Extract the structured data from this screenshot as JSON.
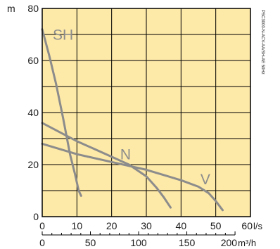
{
  "chart_data": {
    "type": "line",
    "title": "",
    "side_label": "PSC3000-N-ACV-AA/SH-AE 50Hz",
    "ylabel": "m",
    "xlabel": "l/s",
    "x2label": "m³/h",
    "xlim": [
      0,
      60
    ],
    "ylim": [
      0,
      80
    ],
    "x_ticks": [
      0,
      10,
      20,
      30,
      40,
      50,
      60
    ],
    "y_ticks": [
      0,
      20,
      40,
      60,
      80
    ],
    "x2_ticks": [
      {
        "label": "0",
        "value": 0
      },
      {
        "label": "50",
        "value": 50
      },
      {
        "label": "100",
        "value": 100
      },
      {
        "label": "150",
        "value": 150
      },
      {
        "label": "200",
        "value": 200
      }
    ],
    "grid": true,
    "colors": {
      "background": "#fde9a8",
      "grid": "#000000",
      "curve": "#8c8c8c"
    },
    "series": [
      {
        "name": "SH",
        "x": [
          0,
          2,
          4,
          6,
          8,
          9.5,
          10.5,
          11.2
        ],
        "y": [
          72,
          62,
          51,
          38,
          24,
          16,
          10,
          8
        ]
      },
      {
        "name": "N",
        "x": [
          0,
          5,
          10,
          15,
          20,
          25,
          30,
          33,
          35,
          37
        ],
        "y": [
          36,
          32.5,
          29,
          26,
          23,
          20,
          15.5,
          11,
          7.5,
          3.5
        ]
      },
      {
        "name": "V",
        "x": [
          0,
          10,
          20,
          30,
          35,
          40,
          45,
          48,
          50,
          52
        ],
        "y": [
          28,
          24,
          21,
          18,
          16,
          14,
          11.5,
          9,
          6,
          2.5
        ]
      }
    ]
  }
}
